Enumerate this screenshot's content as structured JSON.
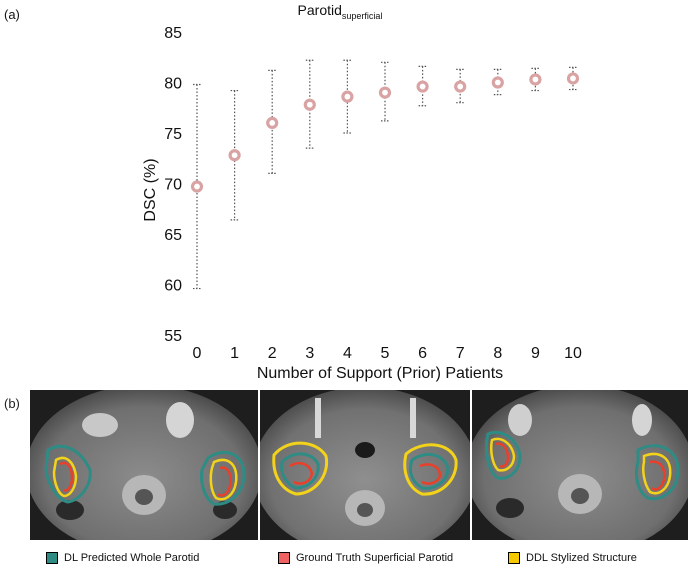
{
  "panel_a_label": "(a)",
  "panel_b_label": "(b)",
  "chart_data": {
    "type": "scatter",
    "title_main": "Parotid",
    "title_sub": "superficial",
    "xlabel": "Number of Support (Prior) Patients",
    "ylabel": "DSC (%)",
    "x": [
      0,
      1,
      2,
      3,
      4,
      5,
      6,
      7,
      8,
      9,
      10
    ],
    "y": [
      69.7,
      72.8,
      76.0,
      77.8,
      78.6,
      79.0,
      79.6,
      79.6,
      80.0,
      80.3,
      80.4
    ],
    "err_low": [
      59.6,
      66.4,
      71.0,
      73.5,
      75.0,
      76.2,
      77.7,
      78.0,
      78.8,
      79.2,
      79.3
    ],
    "err_high": [
      79.8,
      79.2,
      81.2,
      82.2,
      82.2,
      82.0,
      81.6,
      81.3,
      81.3,
      81.4,
      81.5
    ],
    "xlim": [
      0,
      10
    ],
    "ylim": [
      55,
      85
    ],
    "yticks": [
      55,
      60,
      65,
      70,
      75,
      80,
      85
    ],
    "xticks": [
      0,
      1,
      2,
      3,
      4,
      5,
      6,
      7,
      8,
      9,
      10
    ],
    "marker_color": "#d9a3a3",
    "errorbar_color": "#555555"
  },
  "legend": {
    "items": [
      {
        "label": "DL Predicted Whole Parotid",
        "color": "#2f8c85"
      },
      {
        "label": "Ground Truth Superficial Parotid",
        "color": "#f06262"
      },
      {
        "label": "DDL Stylized Structure",
        "color": "#f5c800"
      }
    ]
  },
  "colors": {
    "teal": "#2f8c85",
    "red": "#e8402a",
    "yellow": "#f3d21a"
  }
}
